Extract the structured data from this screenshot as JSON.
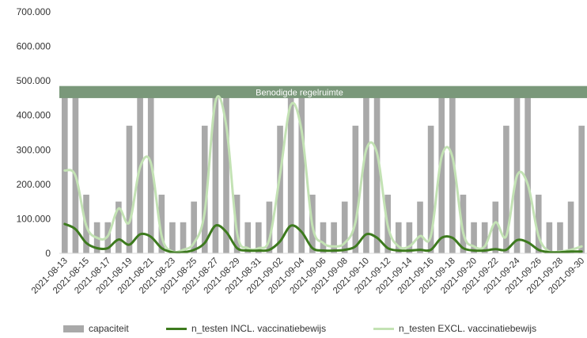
{
  "colors": {
    "bar": "#a9a9a9",
    "band_fill": "#7a987a",
    "band_text": "#ffffff",
    "line_incl": "#3d7a1e",
    "line_excl": "#c3e2b4",
    "axis_text": "#333333"
  },
  "band_label": "Benodigde regelruimte",
  "legend": {
    "bar": "capaciteit",
    "incl": "n_testen INCL. vaccinatiebewijs",
    "excl": "n_testen EXCL. vaccinatiebewijs"
  },
  "chart_data": {
    "type": "bar",
    "y_ticks": [
      "0",
      "100.000",
      "200.000",
      "300.000",
      "400.000",
      "500.000",
      "600.000",
      "700.000"
    ],
    "ylim": [
      0,
      700000
    ],
    "x_tick_labels": [
      "2021-08-13",
      "2021-08-15",
      "2021-08-17",
      "2021-08-19",
      "2021-08-21",
      "2021-08-23",
      "2021-08-25",
      "2021-08-27",
      "2021-08-29",
      "2021-08-31",
      "2021-09-02",
      "2021-09-04",
      "2021-09-06",
      "2021-09-08",
      "2021-09-10",
      "2021-09-12",
      "2021-09-14",
      "2021-09-16",
      "2021-09-18",
      "2021-09-20",
      "2021-09-22",
      "2021-09-24",
      "2021-09-26",
      "2021-09-28",
      "2021-09-30"
    ],
    "band": {
      "from": 450000,
      "to": 485000
    },
    "series": [
      {
        "name": "capaciteit",
        "type": "bar",
        "values": [
          480000,
          480000,
          170000,
          90000,
          90000,
          150000,
          370000,
          480000,
          480000,
          170000,
          90000,
          90000,
          150000,
          370000,
          480000,
          480000,
          170000,
          90000,
          90000,
          150000,
          370000,
          480000,
          480000,
          170000,
          90000,
          90000,
          150000,
          370000,
          480000,
          480000,
          170000,
          90000,
          90000,
          150000,
          370000,
          480000,
          480000,
          170000,
          90000,
          90000,
          150000,
          370000,
          480000,
          480000,
          170000,
          90000,
          90000,
          150000,
          370000
        ]
      },
      {
        "name": "n_testen INCL. vaccinatiebewijs",
        "type": "line",
        "values": [
          85000,
          70000,
          30000,
          15000,
          15000,
          40000,
          25000,
          55000,
          48000,
          15000,
          3000,
          3000,
          10000,
          30000,
          80000,
          62000,
          15000,
          8000,
          8000,
          10000,
          35000,
          80000,
          62000,
          15000,
          8000,
          8000,
          10000,
          20000,
          55000,
          45000,
          15000,
          8000,
          8000,
          10000,
          10000,
          45000,
          45000,
          15000,
          8000,
          8000,
          12000,
          10000,
          38000,
          32000,
          10000,
          3000,
          3000,
          5000,
          5000
        ]
      },
      {
        "name": "n_testen EXCL. vaccinatiebewijs",
        "type": "line",
        "values": [
          240000,
          225000,
          80000,
          45000,
          50000,
          130000,
          90000,
          250000,
          262000,
          50000,
          5000,
          10000,
          30000,
          120000,
          440000,
          370000,
          60000,
          15000,
          15000,
          40000,
          230000,
          430000,
          355000,
          80000,
          30000,
          20000,
          30000,
          90000,
          300000,
          290000,
          80000,
          20000,
          20000,
          50000,
          50000,
          280000,
          280000,
          60000,
          20000,
          20000,
          90000,
          50000,
          225000,
          200000,
          50000,
          5000,
          5000,
          10000,
          20000
        ]
      }
    ]
  }
}
